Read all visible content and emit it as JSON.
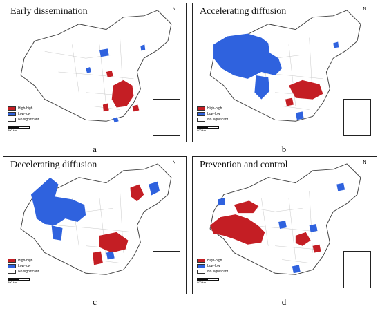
{
  "panels": [
    {
      "id": "a",
      "title": "Early dissemination",
      "label": "a"
    },
    {
      "id": "b",
      "title": "Accelerating diffusion",
      "label": "b"
    },
    {
      "id": "c",
      "title": "Decelerating diffusion",
      "label": "c"
    },
    {
      "id": "d",
      "title": "Prevention and control",
      "label": "d"
    }
  ],
  "legend": {
    "high_high": "High-high",
    "low_low": "Low-low",
    "not_significant": "No significant"
  },
  "north_symbol": "N",
  "scale_text": "800 km",
  "colors": {
    "high_high": "#c41e24",
    "low_low": "#2f62de",
    "not_significant": "#ffffff",
    "boundary": "#555555"
  }
}
